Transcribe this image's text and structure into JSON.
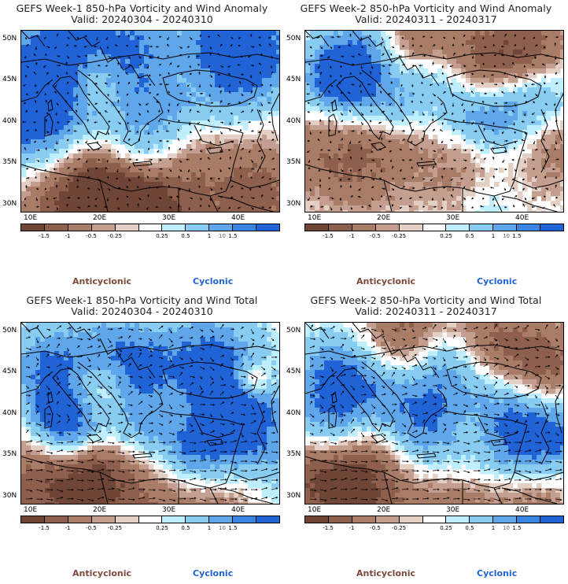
{
  "panels": [
    {
      "title_line1": "GEFS Week-1 850-hPa Vorticity and Wind Anomaly",
      "title_line2": "Valid: 20240304 - 20240310"
    },
    {
      "title_line1": "GEFS Week-2 850-hPa Vorticity and Wind Anomaly",
      "title_line2": "Valid: 20240311 - 20240317"
    },
    {
      "title_line1": "GEFS Week-1 850-hPa Vorticity and Wind Total",
      "title_line2": "Valid: 20240304 - 20240310"
    },
    {
      "title_line1": "GEFS Week-2 850-hPa Vorticity and Wind Total",
      "title_line2": "Valid: 20240311 - 20240317"
    }
  ],
  "axes": {
    "lat_labels": [
      "50N",
      "45N",
      "40N",
      "35N",
      "30N"
    ],
    "lon_labels": [
      "10E",
      "20E",
      "30E",
      "40E"
    ]
  },
  "colorbar": {
    "ticks": [
      "-1.5",
      "-1",
      "-0.5",
      "-0.25",
      "0.25",
      "0.5",
      "1",
      "1.5"
    ],
    "unit_mark": "10",
    "colors": [
      "#6e4536",
      "#8e5f4d",
      "#a97c68",
      "#c49e8e",
      "#e4cfc5",
      "#ffffff",
      "#bfefff",
      "#88ccf2",
      "#5fa6ea",
      "#3a85e3",
      "#1f63d6"
    ]
  },
  "legend": {
    "anticyclonic": "Anticyclonic",
    "cyclonic": "Cyclonic"
  }
}
